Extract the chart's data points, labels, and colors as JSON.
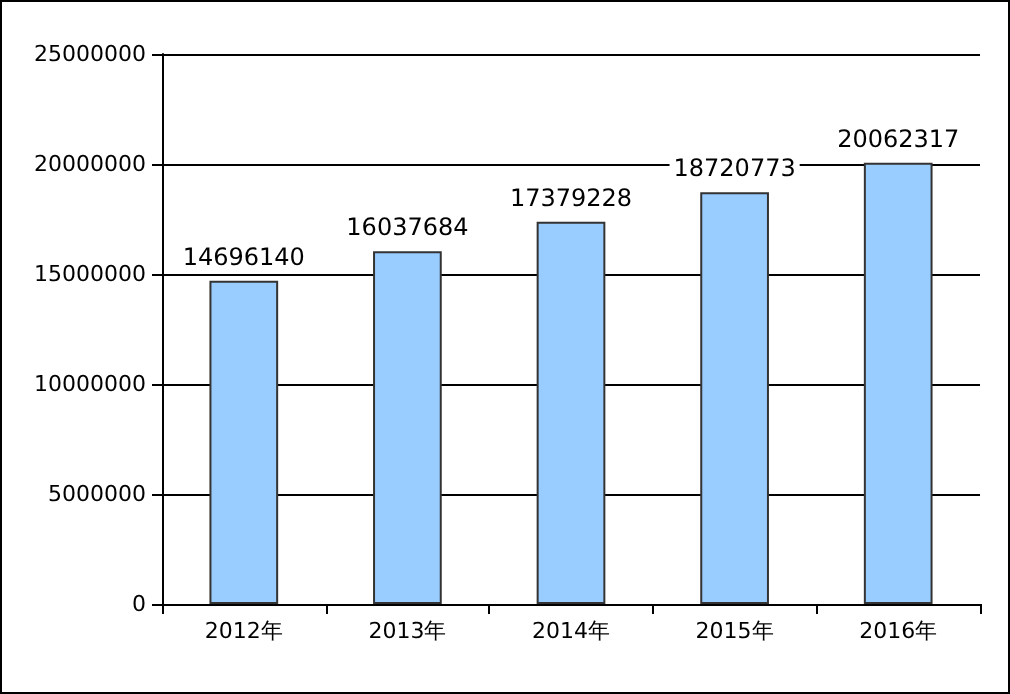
{
  "chart_data": {
    "type": "bar",
    "categories": [
      "2012年",
      "2013年",
      "2014年",
      "2015年",
      "2016年"
    ],
    "values": [
      14696140,
      16037684,
      17379228,
      18720773,
      20062317
    ],
    "color": "#99ccff",
    "ylim": [
      0,
      25000000
    ],
    "yticks": [
      0,
      5000000,
      10000000,
      15000000,
      20000000,
      25000000
    ],
    "grid": "y",
    "data_labels": true
  }
}
